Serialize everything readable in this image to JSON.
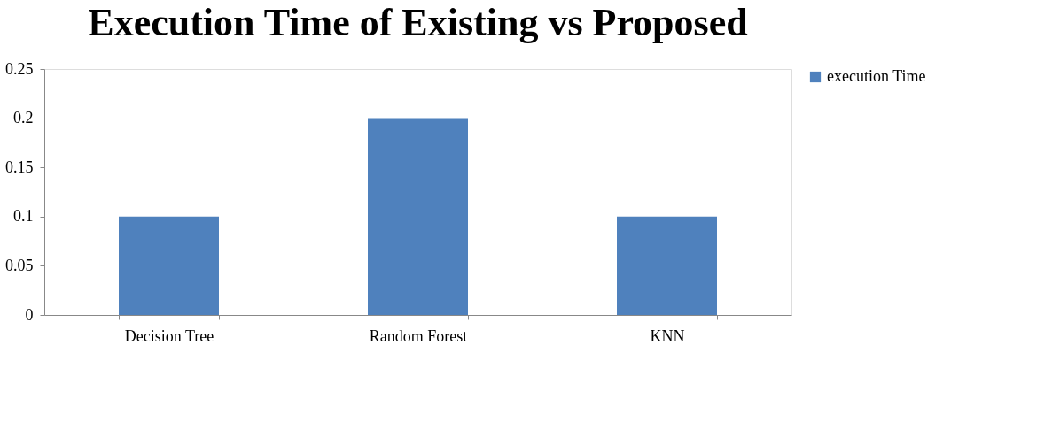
{
  "chart_data": {
    "type": "bar",
    "title": "Execution Time of Existing vs Proposed",
    "categories": [
      "Decision Tree",
      "Random Forest",
      "KNN"
    ],
    "series": [
      {
        "name": "execution Time",
        "color": "#4f81bd",
        "values": [
          0.1,
          0.2,
          0.1
        ]
      }
    ],
    "ylim": [
      0,
      0.25
    ],
    "yticks": [
      0,
      0.05,
      0.1,
      0.15,
      0.2,
      0.25
    ],
    "grid": false,
    "legend": "right"
  }
}
